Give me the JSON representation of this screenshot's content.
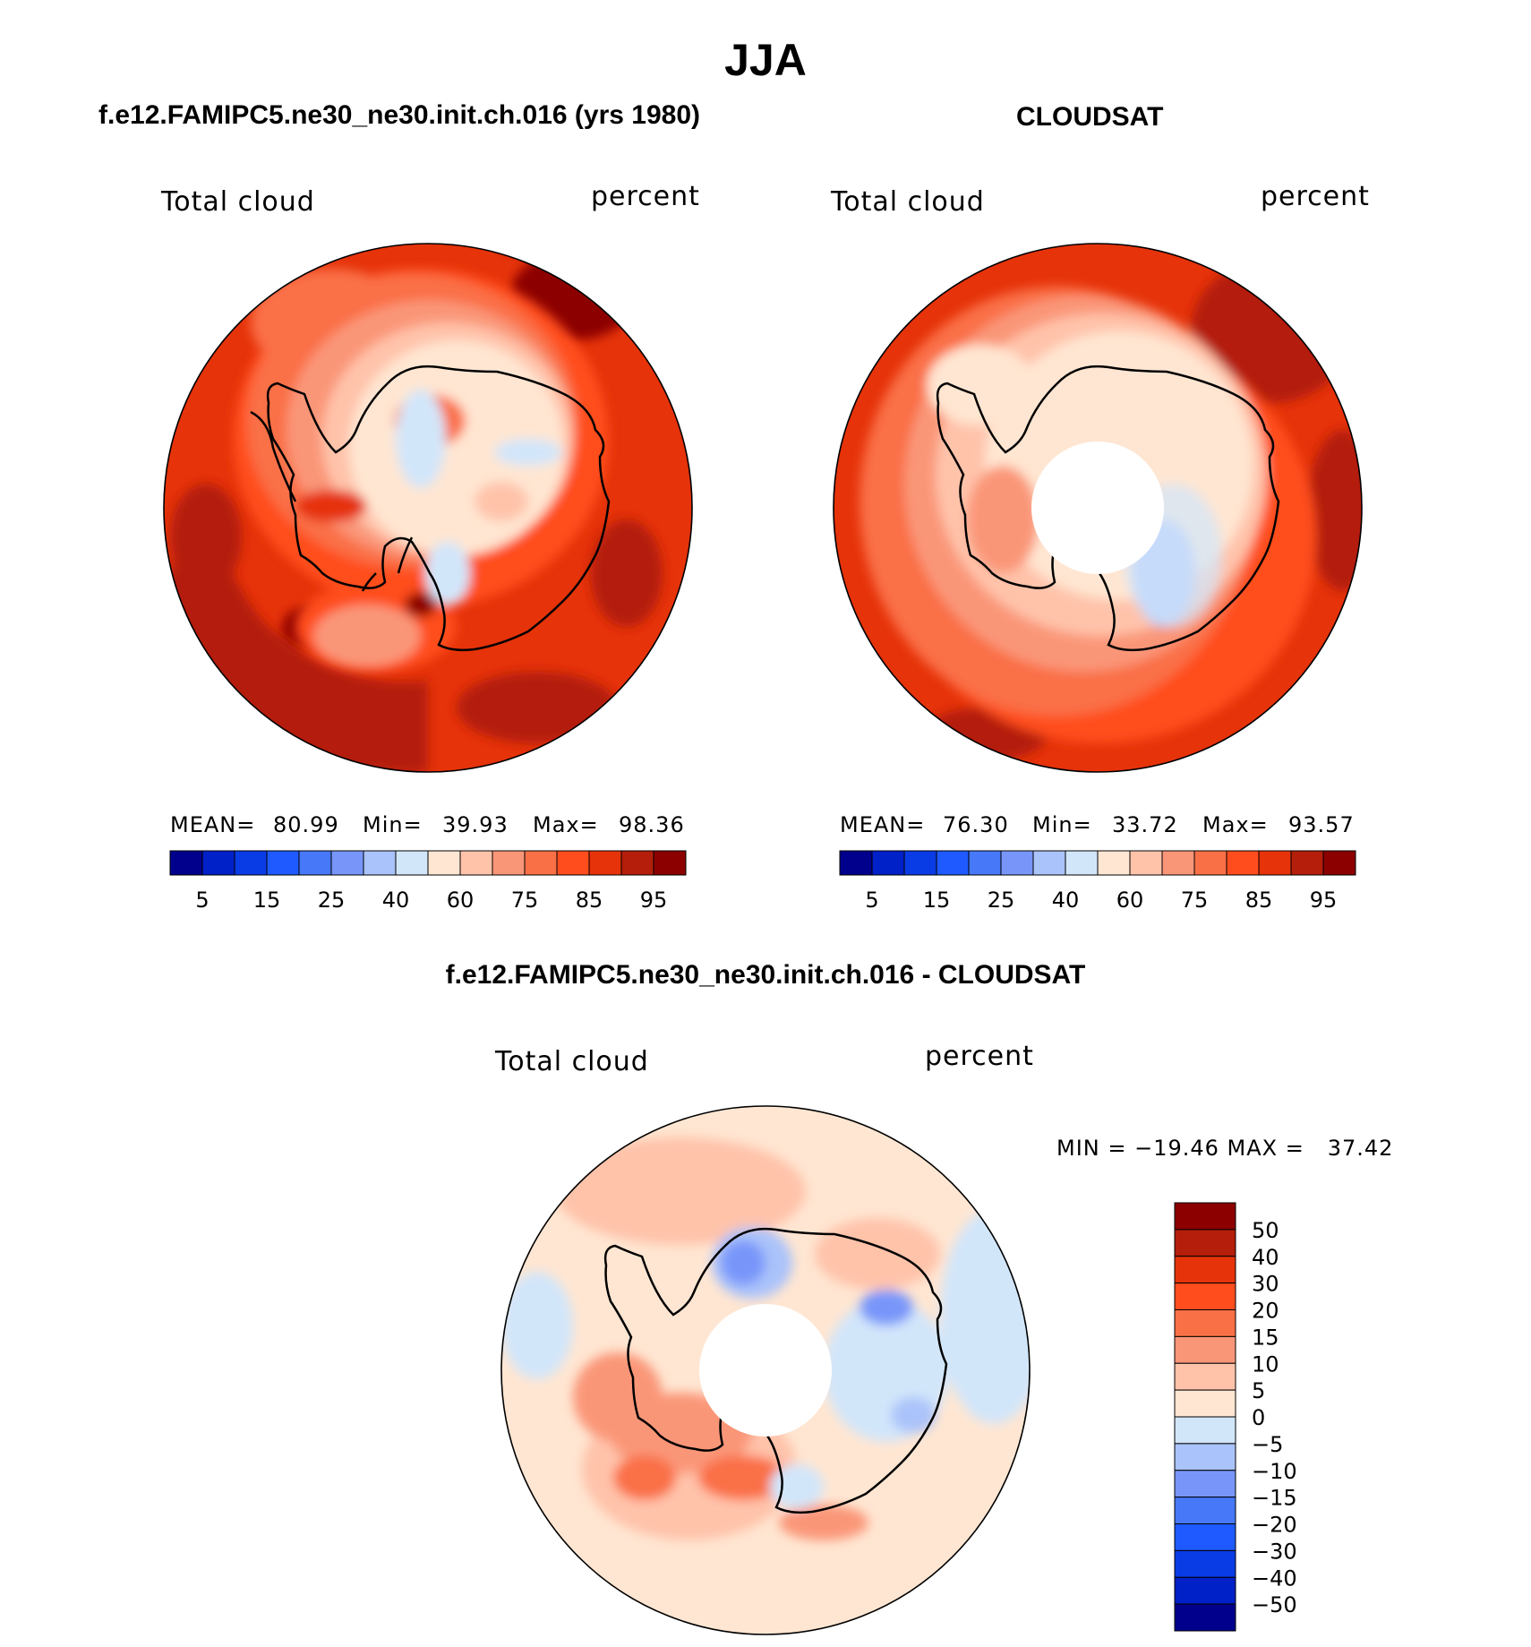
{
  "title": "JJA",
  "panels": [
    {
      "heading": "f.e12.FAMIPC5.ne30_ne30.init.ch.016 (yrs 1980)",
      "var_label": "Total cloud",
      "units": "percent",
      "stats": {
        "mean_label": "MEAN=",
        "mean": "80.99",
        "min_label": "Min=",
        "min": "39.93",
        "max_label": "Max=",
        "max": "98.36"
      }
    },
    {
      "heading": "CLOUDSAT",
      "var_label": "Total cloud",
      "units": "percent",
      "stats": {
        "mean_label": "MEAN=",
        "mean": "76.30",
        "min_label": "Min=",
        "min": "33.72",
        "max_label": "Max=",
        "max": "93.57"
      }
    },
    {
      "heading": "f.e12.FAMIPC5.ne30_ne30.init.ch.016 - CLOUDSAT",
      "var_label": "Total cloud",
      "units": "percent",
      "stats": {
        "minmax_text": "MIN = −19.46 MAX =   37.42"
      }
    }
  ],
  "chart_data": [
    {
      "type": "heatmap",
      "projection": "south-polar-stereographic",
      "title": "f.e12.FAMIPC5.ne30_ne30.init.ch.016 (yrs 1980)",
      "colorbar": {
        "orientation": "horizontal",
        "tick_labels": [
          "5",
          "15",
          "25",
          "40",
          "60",
          "75",
          "85",
          "95"
        ],
        "colors": [
          "#00008c",
          "#0020c8",
          "#0a3ce6",
          "#1e5aff",
          "#4678f8",
          "#7896fa",
          "#aac3fa",
          "#d2e6fa",
          "#ffe6d2",
          "#ffc3aa",
          "#fa9678",
          "#fa7046",
          "#ff4d1e",
          "#e6330a",
          "#b41e0a",
          "#8c0000"
        ]
      },
      "stats": {
        "mean": 80.99,
        "min": 39.93,
        "max": 98.36
      }
    },
    {
      "type": "heatmap",
      "projection": "south-polar-stereographic",
      "title": "CLOUDSAT",
      "colorbar": {
        "orientation": "horizontal",
        "tick_labels": [
          "5",
          "15",
          "25",
          "40",
          "60",
          "75",
          "85",
          "95"
        ],
        "colors": [
          "#00008c",
          "#0020c8",
          "#0a3ce6",
          "#1e5aff",
          "#4678f8",
          "#7896fa",
          "#aac3fa",
          "#d2e6fa",
          "#ffe6d2",
          "#ffc3aa",
          "#fa9678",
          "#fa7046",
          "#ff4d1e",
          "#e6330a",
          "#b41e0a",
          "#8c0000"
        ]
      },
      "stats": {
        "mean": 76.3,
        "min": 33.72,
        "max": 93.57
      },
      "missing_data_near_pole": true
    },
    {
      "type": "heatmap",
      "projection": "south-polar-stereographic",
      "title": "f.e12.FAMIPC5.ne30_ne30.init.ch.016 - CLOUDSAT",
      "colorbar": {
        "orientation": "vertical",
        "tick_labels": [
          "50",
          "40",
          "30",
          "20",
          "15",
          "10",
          "5",
          "0",
          "−5",
          "−10",
          "−15",
          "−20",
          "−30",
          "−40",
          "−50"
        ],
        "colors": [
          "#8c0000",
          "#b41e0a",
          "#e6330a",
          "#ff4d1e",
          "#fa7046",
          "#fa9678",
          "#ffc3aa",
          "#ffe6d2",
          "#d2e6fa",
          "#aac3fa",
          "#7896fa",
          "#4678f8",
          "#1e5aff",
          "#0a3ce6",
          "#0020c8",
          "#00008c"
        ]
      },
      "stats": {
        "min": -19.46,
        "max": 37.42
      },
      "missing_data_near_pole": true
    }
  ]
}
